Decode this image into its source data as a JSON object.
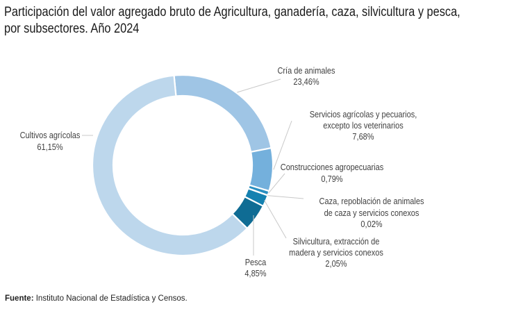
{
  "chart_data": {
    "type": "pie",
    "variant": "donut",
    "title_lines": [
      "Participación del valor agregado bruto de Agricultura, ganadería, caza, silvicultura y pesca,",
      "por subsectores. Año 2024"
    ],
    "slices": [
      {
        "name": "Cría de animales",
        "label_lines": [
          "Cría de animales"
        ],
        "value": 23.46,
        "value_label": "23,46%",
        "color": "#9fc5e5"
      },
      {
        "name": "Servicios agrícolas y pecuarios, excepto los veterinarios",
        "label_lines": [
          "Servicios agrícolas y pecuarios,",
          "excepto los veterinarios"
        ],
        "value": 7.68,
        "value_label": "7,68%",
        "color": "#74b0dc"
      },
      {
        "name": "Construcciones agropecuarias",
        "label_lines": [
          "Construcciones agropecuarias"
        ],
        "value": 0.79,
        "value_label": "0,79%",
        "color": "#2a8fc1"
      },
      {
        "name": "Caza, repoblación de animales de caza y servicios conexos",
        "label_lines": [
          "Caza, repoblación de animales",
          "de caza y servicios conexos"
        ],
        "value": 0.02,
        "value_label": "0,02%",
        "color": "#1a7fb0"
      },
      {
        "name": "Silvicultura, extracción de madera y servicios conexos",
        "label_lines": [
          "Silvicultura, extracción de",
          "madera y servicios conexos"
        ],
        "value": 2.05,
        "value_label": "2,05%",
        "color": "#1581b0"
      },
      {
        "name": "Pesca",
        "label_lines": [
          "Pesca"
        ],
        "value": 4.85,
        "value_label": "4,85%",
        "color": "#0f6c94"
      },
      {
        "name": "Cultivos agrícolas",
        "label_lines": [
          "Cultivos agrícolas"
        ],
        "value": 61.15,
        "value_label": "61,15%",
        "color": "#bdd7ec"
      }
    ],
    "legend": "none"
  },
  "source": {
    "prefix": "Fuente:",
    "text": " Instituto Nacional de Estadística y Censos."
  }
}
